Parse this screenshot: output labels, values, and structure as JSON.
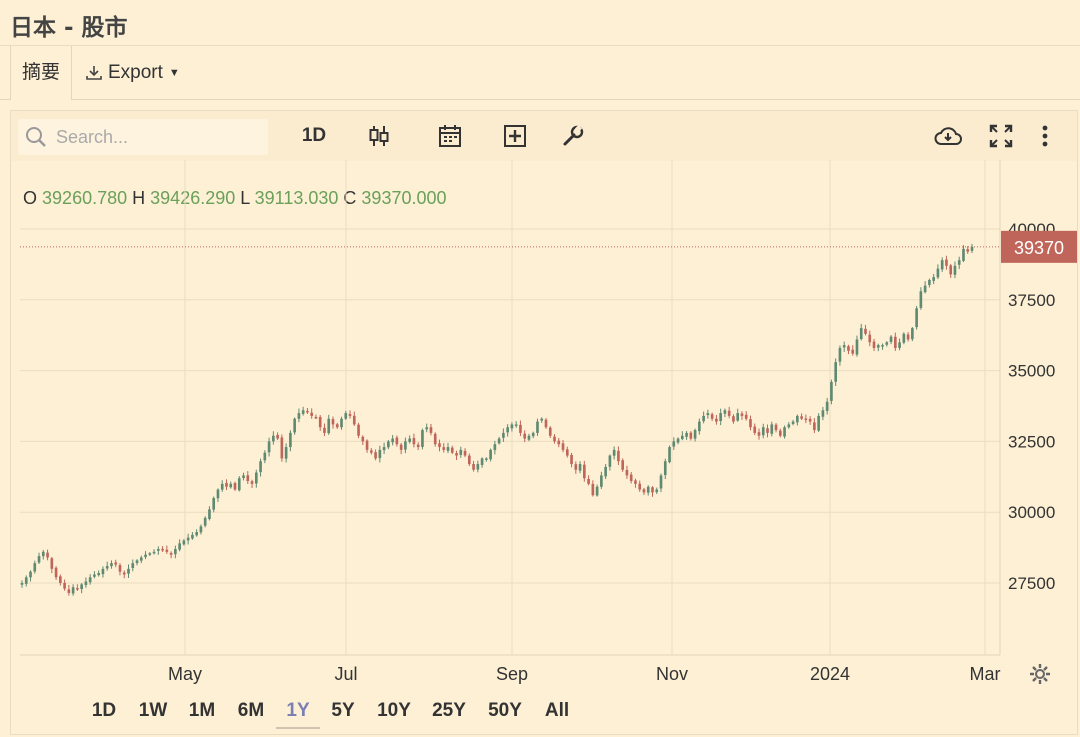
{
  "page": {
    "title": "日本 - 股市"
  },
  "tabs": {
    "summary_label": "摘要",
    "export_label": "Export"
  },
  "toolbar": {
    "search_placeholder": "Search...",
    "interval_label": "1D",
    "icons": [
      "search-icon",
      "candlestick-icon",
      "calendar-icon",
      "add-indicator-icon",
      "wrench-icon",
      "cloud-download-icon",
      "fullscreen-icon",
      "more-vertical-icon"
    ]
  },
  "ohlc": {
    "o_label": "O",
    "o_value": "39260.780",
    "h_label": "H",
    "h_value": "39426.290",
    "l_label": "L",
    "l_value": "39113.030",
    "c_label": "C",
    "c_value": "39370.000"
  },
  "range_buttons": [
    "1D",
    "1W",
    "1M",
    "6M",
    "1Y",
    "5Y",
    "10Y",
    "25Y",
    "50Y",
    "All"
  ],
  "active_range": "1Y",
  "colors": {
    "up": "#5f8a72",
    "down": "#c0655a",
    "price_label_bg": "#c0655a",
    "grid": "#ecdcc0",
    "active_range": "#7b7fb5"
  },
  "chart_data": {
    "type": "candlestick",
    "title": "",
    "ylim": [
      25000,
      41000
    ],
    "y_ticks": [
      27500,
      30000,
      32500,
      35000,
      37500,
      40000
    ],
    "x_ticks": [
      "May",
      "Jul",
      "Sep",
      "Nov",
      "2024",
      "Mar"
    ],
    "last_price": "39370",
    "grid": true,
    "series": [
      {
        "values": [
          27500,
          27700,
          27900,
          28200,
          28450,
          28600,
          28400,
          28000,
          27700,
          27500,
          27300,
          27150,
          27350,
          27300,
          27450,
          27550,
          27700,
          27800,
          27850,
          28000,
          28100,
          28200,
          28150,
          27900,
          27800,
          28000,
          28200,
          28300,
          28400,
          28500,
          28550,
          28600,
          28700,
          28650,
          28600,
          28500,
          28700,
          28900,
          29000,
          29100,
          29200,
          29300,
          29500,
          29800,
          30100,
          30500,
          30800,
          31000,
          30900,
          31000,
          30800,
          31200,
          31300,
          31100,
          31000,
          31400,
          31800,
          32100,
          32500,
          32700,
          32600,
          31900,
          32300,
          32800,
          33300,
          33500,
          33600,
          33550,
          33400,
          33350,
          33000,
          32800,
          33300,
          33100,
          33000,
          33300,
          33500,
          33400,
          33100,
          32700,
          32500,
          32200,
          32100,
          31900,
          32200,
          32300,
          32500,
          32600,
          32400,
          32200,
          32500,
          32600,
          32400,
          32300,
          32900,
          33000,
          32800,
          32400,
          32300,
          32200,
          32300,
          32100,
          32000,
          32200,
          32000,
          31700,
          31500,
          31700,
          31900,
          31900,
          32200,
          32400,
          32600,
          32800,
          33000,
          33100,
          33100,
          32800,
          32600,
          32700,
          32800,
          33200,
          33300,
          33000,
          32700,
          32500,
          32400,
          32200,
          32000,
          31700,
          31500,
          31700,
          31200,
          31000,
          30600,
          30900,
          31300,
          31600,
          32000,
          32200,
          31800,
          31500,
          31300,
          31100,
          31000,
          30800,
          30700,
          30900,
          30700,
          30800,
          31300,
          31800,
          32300,
          32500,
          32600,
          32700,
          32800,
          32600,
          32900,
          33200,
          33400,
          33500,
          33300,
          33200,
          33500,
          33600,
          33400,
          33200,
          33500,
          33400,
          33300,
          33000,
          32800,
          32700,
          33000,
          32800,
          33100,
          32900,
          32700,
          33000,
          33100,
          33200,
          33400,
          33300,
          33300,
          33200,
          32900,
          33400,
          33600,
          33900,
          34600,
          35300,
          35800,
          35900,
          35700,
          35600,
          36100,
          36500,
          36300,
          36000,
          35800,
          35900,
          35900,
          36000,
          36200,
          35800,
          36000,
          36300,
          36100,
          36500,
          37200,
          37800,
          38000,
          38200,
          38300,
          38600,
          38900,
          38700,
          38400,
          38700,
          38900,
          39300,
          39200,
          39370
        ]
      }
    ]
  }
}
